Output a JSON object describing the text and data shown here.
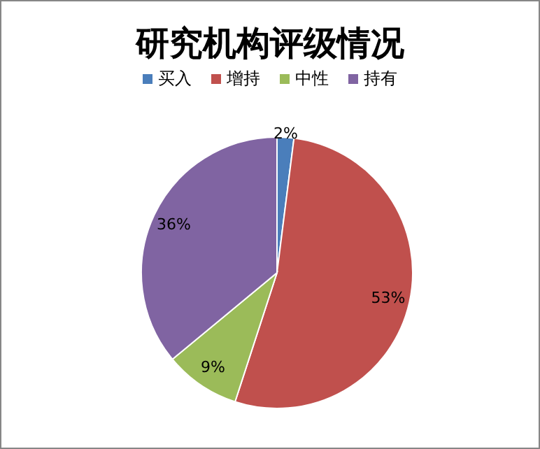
{
  "chart_data": {
    "type": "pie",
    "title": "研究机构评级情况",
    "categories": [
      "买入",
      "增持",
      "中性",
      "持有"
    ],
    "values": [
      2,
      53,
      9,
      36
    ],
    "colors": [
      "#4a7ebb",
      "#c0504d",
      "#9bbb59",
      "#8064a2"
    ],
    "value_labels": [
      "2%",
      "53%",
      "9%",
      "36%"
    ],
    "legend": "top"
  }
}
